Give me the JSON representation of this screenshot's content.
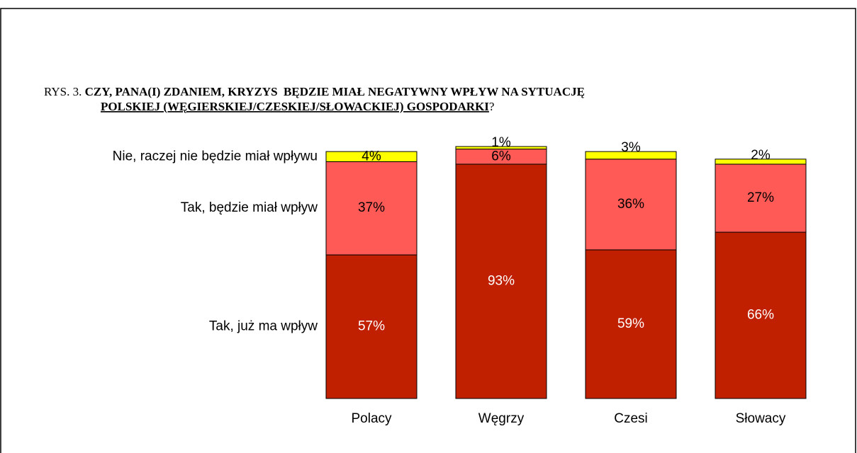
{
  "chart_data": {
    "type": "stacked_bar",
    "title_prefix": "RYS. 3.",
    "title": "CZY, PANA(I) ZDANIEM, KRYZYS  BĘDZIE MIAŁ NEGATYWNY WPŁYW NA SYTUACJĘ",
    "title_underlined": "POLSKIEJ (WĘGIERSKIEJ/CZESKIEJ/SŁOWACKIEJ) GOSPODARKI",
    "title_end": "?",
    "categories": [
      "Polacy",
      "Węgrzy",
      "Czesi",
      "Słowacy"
    ],
    "series": [
      {
        "name": "Tak, już ma wpływ",
        "color": "#c01f00",
        "label_color": "#ffffff",
        "values": [
          57,
          93,
          59,
          66
        ],
        "value_labels": [
          "57%",
          "93%",
          "59%",
          "66%"
        ]
      },
      {
        "name": "Tak, będzie miał wpływ",
        "color": "#ff5a55",
        "label_color": "#000000",
        "values": [
          37,
          6,
          36,
          27
        ],
        "value_labels": [
          "37%",
          "6%",
          "36%",
          "27%"
        ]
      },
      {
        "name": "Nie, raczej nie będzie miał wpływu",
        "color": "#ffff00",
        "label_color": "#000000",
        "values": [
          4,
          1,
          3,
          2
        ],
        "value_labels": [
          "4%",
          "1%",
          "3%",
          "2%"
        ]
      }
    ],
    "ylim": [
      0,
      100
    ]
  }
}
